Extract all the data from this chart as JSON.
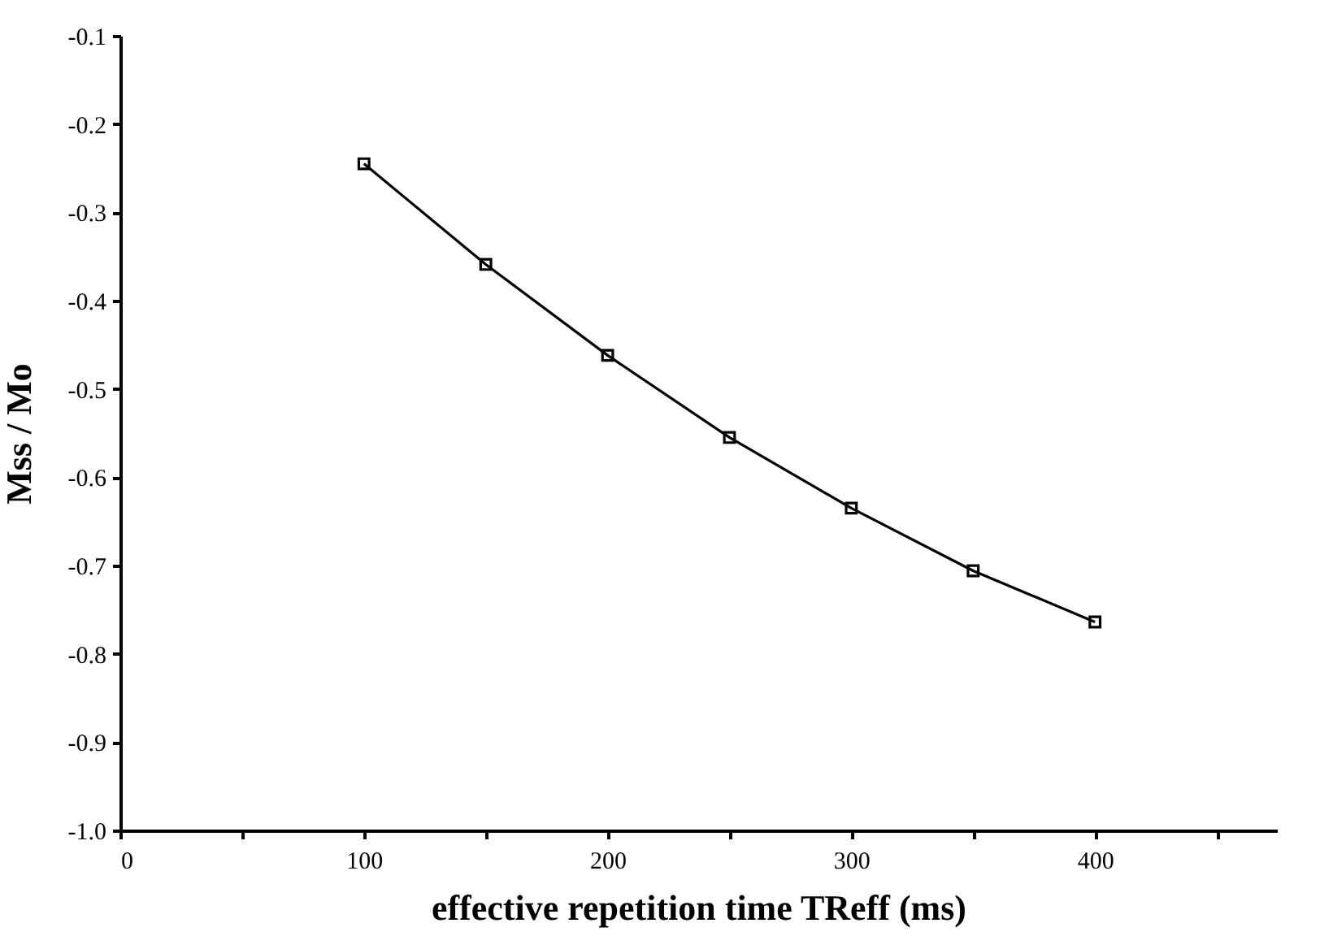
{
  "chart_data": {
    "type": "line",
    "xlabel": "effective repetition time TReff (ms)",
    "ylabel": "Mss / Mo",
    "x": [
      100,
      150,
      200,
      250,
      300,
      350,
      400
    ],
    "series": [
      {
        "color": "#000000",
        "values": [
          -0.245,
          -0.359,
          -0.462,
          -0.555,
          -0.635,
          -0.706,
          -0.764
        ]
      }
    ],
    "xlim": [
      0,
      475
    ],
    "xticks": [
      0,
      {
        "value": 50,
        "label": null
      },
      100,
      {
        "value": 150,
        "label": null
      },
      200,
      {
        "value": 250,
        "label": null
      },
      300,
      {
        "value": 350,
        "label": null
      },
      400,
      {
        "value": 450,
        "label": null
      }
    ],
    "ylim": [
      -1.0,
      -0.1
    ],
    "yticks": [
      {
        "value": -1.0,
        "label": "-1.0"
      },
      -0.9,
      -0.8,
      -0.7,
      -0.6,
      -0.5,
      -0.4,
      -0.3,
      -0.2,
      -0.1
    ],
    "grid": false,
    "marker": "square",
    "line_style": "solid"
  }
}
